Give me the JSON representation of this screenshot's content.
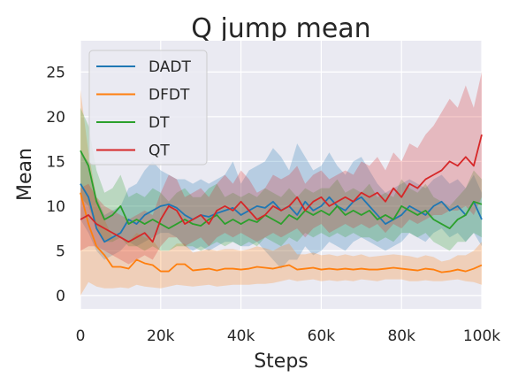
{
  "chart_data": {
    "type": "line",
    "title": "Q jump mean",
    "xlabel": "Steps",
    "ylabel": "Mean",
    "xlim": [
      0,
      100000
    ],
    "ylim": [
      -1.5,
      28.5
    ],
    "x_ticks": [
      0,
      20000,
      40000,
      60000,
      80000,
      100000
    ],
    "x_tick_labels": [
      "0",
      "20k",
      "40k",
      "60k",
      "80k",
      "100k"
    ],
    "y_ticks": [
      0,
      5,
      10,
      15,
      20,
      25
    ],
    "y_tick_labels": [
      "0",
      "5",
      "10",
      "15",
      "20",
      "25"
    ],
    "grid": true,
    "legend_position": "top-left",
    "background_color": "#eaeaf2",
    "x": [
      0,
      2000,
      4000,
      6000,
      8000,
      10000,
      12000,
      14000,
      16000,
      18000,
      20000,
      22000,
      24000,
      26000,
      28000,
      30000,
      32000,
      34000,
      36000,
      38000,
      40000,
      42000,
      44000,
      46000,
      48000,
      50000,
      52000,
      54000,
      56000,
      58000,
      60000,
      62000,
      64000,
      66000,
      68000,
      70000,
      72000,
      74000,
      76000,
      78000,
      80000,
      82000,
      84000,
      86000,
      88000,
      90000,
      92000,
      94000,
      96000,
      98000,
      100000
    ],
    "series": [
      {
        "name": "DADT",
        "color": "#1f77b4",
        "mean": [
          12.5,
          11.0,
          7.5,
          6.0,
          6.5,
          7.0,
          8.5,
          8.0,
          9.0,
          9.5,
          10.0,
          10.2,
          9.8,
          9.0,
          8.5,
          9.0,
          8.8,
          9.2,
          9.5,
          9.8,
          9.0,
          9.5,
          10.0,
          9.8,
          10.5,
          9.5,
          10.0,
          9.0,
          10.5,
          9.5,
          10.0,
          11.0,
          10.0,
          9.5,
          10.5,
          11.0,
          10.0,
          9.0,
          8.0,
          8.5,
          9.0,
          10.0,
          9.5,
          9.0,
          10.0,
          10.5,
          9.5,
          10.0,
          9.0,
          10.5,
          8.5
        ],
        "lower": [
          8.5,
          7.0,
          5.0,
          4.0,
          4.5,
          5.0,
          6.0,
          5.5,
          6.0,
          6.5,
          7.0,
          7.0,
          6.5,
          5.5,
          5.0,
          5.5,
          5.0,
          5.5,
          6.0,
          6.0,
          5.5,
          5.5,
          6.0,
          5.0,
          4.0,
          3.0,
          4.0,
          4.0,
          5.5,
          4.5,
          5.0,
          6.0,
          5.5,
          5.0,
          6.0,
          6.5,
          6.0,
          5.5,
          5.0,
          5.5,
          6.0,
          7.0,
          6.5,
          6.0,
          7.0,
          7.5,
          6.5,
          7.0,
          6.0,
          7.0,
          5.5
        ],
        "upper": [
          16.0,
          15.0,
          11.0,
          9.0,
          9.5,
          10.0,
          12.0,
          12.5,
          14.0,
          15.0,
          14.0,
          13.5,
          13.0,
          13.0,
          12.5,
          13.0,
          12.5,
          13.0,
          13.5,
          15.0,
          12.5,
          14.0,
          14.5,
          15.0,
          16.5,
          15.5,
          14.0,
          17.0,
          15.5,
          14.0,
          14.5,
          16.0,
          14.5,
          13.5,
          15.0,
          15.5,
          14.0,
          12.5,
          11.5,
          12.0,
          12.5,
          13.0,
          12.5,
          12.0,
          13.0,
          13.5,
          12.5,
          13.0,
          12.0,
          13.5,
          11.5
        ]
      },
      {
        "name": "DFDT",
        "color": "#ff7f0e",
        "mean": [
          11.5,
          8.0,
          5.5,
          4.5,
          3.2,
          3.2,
          3.0,
          4.0,
          3.6,
          3.4,
          2.7,
          2.7,
          3.5,
          3.5,
          2.8,
          2.9,
          3.0,
          2.8,
          3.0,
          3.0,
          2.9,
          3.0,
          3.2,
          3.1,
          3.0,
          3.2,
          3.4,
          2.9,
          3.0,
          3.1,
          2.9,
          3.0,
          2.9,
          3.0,
          2.9,
          3.0,
          2.9,
          2.9,
          3.0,
          3.1,
          3.0,
          2.9,
          2.8,
          3.0,
          2.9,
          2.6,
          2.7,
          2.9,
          2.7,
          3.0,
          3.4
        ],
        "lower": [
          0.0,
          1.5,
          1.0,
          0.8,
          0.8,
          0.9,
          0.8,
          1.2,
          1.0,
          0.9,
          0.8,
          1.0,
          1.2,
          1.1,
          1.0,
          1.1,
          1.2,
          1.0,
          1.1,
          1.2,
          1.2,
          1.2,
          1.3,
          1.3,
          1.4,
          1.6,
          1.8,
          1.6,
          1.7,
          1.8,
          1.6,
          1.7,
          1.6,
          1.7,
          1.6,
          1.8,
          1.7,
          1.6,
          1.8,
          1.8,
          1.8,
          1.6,
          1.6,
          1.7,
          1.6,
          1.6,
          1.7,
          1.8,
          1.6,
          1.5,
          1.2
        ],
        "upper": [
          23.0,
          16.0,
          11.0,
          8.5,
          6.5,
          6.5,
          6.0,
          7.0,
          6.5,
          6.2,
          5.0,
          5.0,
          5.8,
          5.8,
          4.8,
          5.0,
          5.2,
          5.0,
          5.2,
          5.2,
          5.0,
          5.2,
          5.5,
          5.3,
          5.0,
          5.5,
          5.8,
          4.6,
          4.6,
          4.8,
          4.5,
          4.6,
          4.4,
          4.6,
          4.4,
          4.6,
          4.3,
          4.4,
          4.5,
          4.6,
          4.5,
          4.4,
          4.2,
          4.5,
          4.3,
          3.8,
          4.0,
          4.5,
          4.5,
          5.0,
          6.0
        ]
      },
      {
        "name": "DT",
        "color": "#2ca02c",
        "mean": [
          16.2,
          14.5,
          10.5,
          8.5,
          9.0,
          10.0,
          8.0,
          8.5,
          8.0,
          8.5,
          8.0,
          7.5,
          8.0,
          8.5,
          8.0,
          7.8,
          8.5,
          9.0,
          8.0,
          8.5,
          8.0,
          8.5,
          8.2,
          9.0,
          8.5,
          8.0,
          9.0,
          8.5,
          9.5,
          9.0,
          9.5,
          9.0,
          10.0,
          9.0,
          9.5,
          9.0,
          9.5,
          8.5,
          9.0,
          8.5,
          10.0,
          9.5,
          9.0,
          9.5,
          8.5,
          8.0,
          7.5,
          8.5,
          9.0,
          10.5,
          10.2
        ],
        "lower": [
          11.0,
          10.0,
          7.5,
          6.0,
          6.0,
          6.5,
          5.5,
          5.5,
          5.0,
          5.5,
          5.0,
          5.0,
          5.5,
          5.5,
          5.5,
          5.0,
          5.5,
          6.0,
          5.5,
          6.0,
          5.5,
          6.0,
          5.5,
          6.5,
          6.0,
          5.5,
          6.5,
          6.0,
          7.0,
          6.5,
          7.0,
          6.5,
          7.0,
          6.5,
          7.0,
          6.5,
          6.5,
          6.0,
          6.5,
          6.0,
          7.0,
          7.0,
          6.5,
          7.0,
          6.0,
          5.5,
          5.0,
          6.0,
          6.0,
          7.0,
          6.5
        ],
        "upper": [
          21.0,
          19.0,
          14.0,
          11.5,
          12.0,
          13.5,
          11.0,
          11.5,
          11.0,
          12.0,
          11.5,
          10.5,
          11.5,
          12.0,
          11.0,
          11.0,
          12.0,
          12.5,
          11.0,
          11.5,
          11.0,
          11.5,
          11.0,
          12.0,
          11.5,
          11.0,
          12.0,
          11.0,
          12.0,
          11.5,
          12.0,
          12.0,
          13.0,
          11.5,
          12.0,
          11.5,
          12.5,
          11.0,
          11.5,
          11.0,
          13.0,
          12.0,
          11.5,
          12.5,
          11.0,
          10.5,
          10.0,
          11.0,
          12.0,
          14.0,
          13.0
        ]
      },
      {
        "name": "QT",
        "color": "#d62728",
        "mean": [
          8.5,
          9.0,
          8.0,
          7.5,
          7.0,
          6.5,
          6.0,
          6.5,
          7.0,
          6.0,
          8.5,
          10.0,
          9.5,
          8.0,
          8.5,
          9.0,
          8.0,
          9.5,
          10.0,
          9.5,
          10.5,
          9.5,
          8.5,
          9.0,
          10.0,
          9.5,
          10.0,
          11.0,
          9.5,
          10.5,
          11.0,
          10.0,
          10.5,
          11.0,
          10.5,
          11.5,
          11.0,
          11.5,
          10.5,
          12.0,
          11.0,
          12.5,
          12.0,
          13.0,
          13.5,
          14.0,
          15.0,
          14.5,
          15.5,
          14.5,
          18.0
        ],
        "lower": [
          5.0,
          5.5,
          5.5,
          5.0,
          4.5,
          4.0,
          3.5,
          4.0,
          4.5,
          4.0,
          5.5,
          6.5,
          6.5,
          5.5,
          6.0,
          6.5,
          5.5,
          6.5,
          7.0,
          6.5,
          7.0,
          6.5,
          6.0,
          6.5,
          7.0,
          6.5,
          7.0,
          7.5,
          6.5,
          7.5,
          8.0,
          7.0,
          7.5,
          8.0,
          7.5,
          8.0,
          7.5,
          8.0,
          7.0,
          8.0,
          7.5,
          8.5,
          8.0,
          8.5,
          9.0,
          9.0,
          9.5,
          9.5,
          10.0,
          9.0,
          11.0
        ],
        "upper": [
          12.0,
          12.5,
          11.0,
          10.0,
          9.5,
          9.0,
          8.5,
          9.0,
          9.5,
          9.0,
          11.5,
          13.5,
          13.0,
          11.0,
          11.5,
          12.0,
          11.0,
          12.5,
          13.5,
          12.5,
          14.0,
          13.0,
          11.5,
          12.0,
          13.5,
          13.0,
          13.5,
          14.5,
          12.5,
          13.5,
          14.0,
          13.0,
          13.5,
          14.0,
          13.5,
          15.0,
          14.5,
          15.5,
          14.0,
          16.0,
          15.0,
          17.0,
          16.5,
          18.0,
          19.0,
          20.5,
          22.0,
          21.0,
          23.5,
          21.0,
          25.0
        ]
      }
    ]
  }
}
